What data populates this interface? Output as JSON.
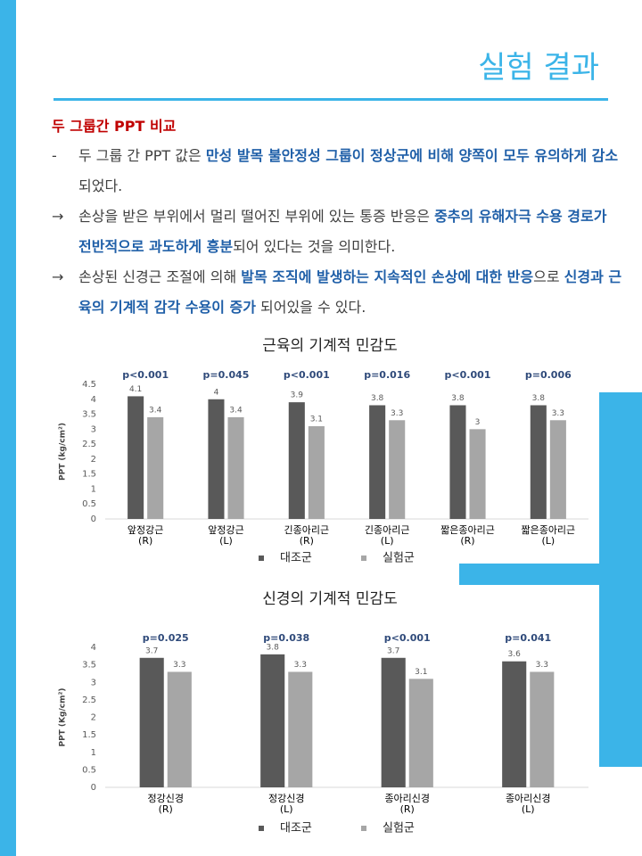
{
  "header": {
    "title": "실험 결과",
    "heading": "두 그룹간 PPT 비교"
  },
  "bullets": [
    {
      "marker": "-",
      "segments": [
        {
          "text": "두 그룹 간 PPT 값은 ",
          "bold": false
        },
        {
          "text": "만성 발목 불안정성 그룹이 정상군에 비해 양쪽이 모두 유의하게 감소",
          "bold": true
        },
        {
          "text": "되었다.",
          "bold": false
        }
      ]
    },
    {
      "marker": "→",
      "segments": [
        {
          "text": "손상을 받은 부위에서 멀리 떨어진 부위에 있는 통증 반응은 ",
          "bold": false
        },
        {
          "text": "중추의 유해자극 수용 경로가 전반적으로 과도하게 흥분",
          "bold": true
        },
        {
          "text": "되어 있다는 것을 의미한다.",
          "bold": false
        }
      ]
    },
    {
      "marker": "→",
      "segments": [
        {
          "text": "손상된 신경근 조절에 의해 ",
          "bold": false
        },
        {
          "text": "발목 조직에 발생하는 지속적인 손상에 대한 반응",
          "bold": true
        },
        {
          "text": "으로 ",
          "bold": false
        },
        {
          "text": "신경과 근육의 기계적 감각 수용이 증가",
          "bold": true
        },
        {
          "text": " 되어있을 수 있다.",
          "bold": false
        }
      ]
    }
  ],
  "chart_data": [
    {
      "type": "bar",
      "title": "근육의 기계적 민감도",
      "y_label": "PPT (kg/cm²)",
      "categories": [
        "앞정강근\n(R)",
        "앞정강근\n(L)",
        "긴종아리근\n(R)",
        "긴종아리근\n(L)",
        "짧은종아리근\n(R)",
        "짧은종아리근\n(L)"
      ],
      "annotations": [
        "p<0.001",
        "p=0.045",
        "p<0.001",
        "p=0.016",
        "p<0.001",
        "p=0.006"
      ],
      "series": [
        {
          "name": "대조군",
          "color": "#595959",
          "values": [
            4.1,
            4,
            3.9,
            3.8,
            3.8,
            3.8
          ]
        },
        {
          "name": "실험군",
          "color": "#a6a6a6",
          "values": [
            3.4,
            3.4,
            3.1,
            3.3,
            3,
            3.3
          ]
        }
      ],
      "ylim": [
        0,
        4.5
      ],
      "yticks": [
        0,
        0.5,
        1,
        1.5,
        2,
        2.5,
        3,
        3.5,
        4,
        4.5
      ],
      "grid": false
    },
    {
      "type": "bar",
      "title": "신경의 기계적 민감도",
      "y_label": "PPT (Kg/cm²)",
      "categories": [
        "정강신경\n(R)",
        "정강신경\n(L)",
        "종아리신경\n(R)",
        "종아리신경\n(L)"
      ],
      "annotations": [
        "p=0.025",
        "p=0.038",
        "p<0.001",
        "p=0.041"
      ],
      "series": [
        {
          "name": "대조군",
          "color": "#595959",
          "values": [
            3.7,
            3.8,
            3.7,
            3.6
          ]
        },
        {
          "name": "실험군",
          "color": "#a6a6a6",
          "values": [
            3.3,
            3.3,
            3.1,
            3.3
          ]
        }
      ],
      "ylim": [
        0,
        4
      ],
      "yticks": [
        0,
        0.5,
        1,
        1.5,
        2,
        2.5,
        3,
        3.5,
        4
      ],
      "grid": false
    }
  ]
}
